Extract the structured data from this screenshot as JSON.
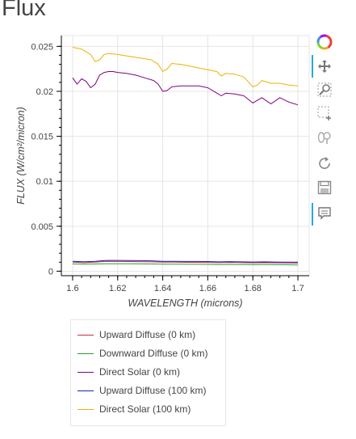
{
  "page": {
    "title": "Flux"
  },
  "toolbar": {
    "tools": [
      {
        "name": "logo-icon"
      },
      {
        "name": "pan-icon",
        "active": true
      },
      {
        "name": "box-zoom-icon"
      },
      {
        "name": "box-select-icon"
      },
      {
        "name": "wheel-zoom-icon"
      },
      {
        "name": "reset-icon"
      },
      {
        "name": "save-icon"
      },
      {
        "name": "hover-icon",
        "active": true
      }
    ]
  },
  "chart_data": {
    "type": "line",
    "title": "",
    "xlabel": "WAVELENGTH (microns)",
    "ylabel": "FLUX (W/cm²/micron)",
    "xlim": [
      1.595,
      1.705
    ],
    "ylim": [
      -0.0005,
      0.0262
    ],
    "xticks": [
      1.6,
      1.62,
      1.64,
      1.66,
      1.68,
      1.7
    ],
    "xtick_labels": [
      "1.6",
      "1.62",
      "1.64",
      "1.66",
      "1.68",
      "1.7"
    ],
    "yticks": [
      0,
      0.005,
      0.01,
      0.015,
      0.02,
      0.025
    ],
    "ytick_labels": [
      "0",
      "0.005",
      "0.01",
      "0.015",
      "0.02",
      "0.025"
    ],
    "grid": true,
    "legend_position": "below",
    "series": [
      {
        "name": "Upward Diffuse (0 km)",
        "color": "#c0304a",
        "x": [
          1.6,
          1.605,
          1.61,
          1.615,
          1.62,
          1.625,
          1.63,
          1.635,
          1.64,
          1.645,
          1.65,
          1.655,
          1.66,
          1.665,
          1.67,
          1.675,
          1.68,
          1.685,
          1.69,
          1.695,
          1.7
        ],
        "y": [
          0.001,
          0.00095,
          0.001,
          0.0011,
          0.00108,
          0.00107,
          0.00105,
          0.00104,
          0.001,
          0.001,
          0.00098,
          0.00098,
          0.00097,
          0.00095,
          0.00097,
          0.00095,
          0.00093,
          0.00095,
          0.00093,
          0.00092,
          0.0009
        ]
      },
      {
        "name": "Downward Diffuse (0 km)",
        "color": "#2ca02c",
        "x": [
          1.6,
          1.605,
          1.61,
          1.615,
          1.62,
          1.625,
          1.63,
          1.635,
          1.64,
          1.645,
          1.65,
          1.655,
          1.66,
          1.665,
          1.67,
          1.675,
          1.68,
          1.685,
          1.69,
          1.695,
          1.7
        ],
        "y": [
          0.0008,
          0.00078,
          0.0008,
          0.00082,
          0.00082,
          0.00082,
          0.00081,
          0.0008,
          0.00078,
          0.00078,
          0.00077,
          0.00077,
          0.00076,
          0.00074,
          0.00075,
          0.00074,
          0.00072,
          0.00073,
          0.00072,
          0.00071,
          0.0007
        ]
      },
      {
        "name": "Direct Solar (0 km)",
        "color": "#800080",
        "x": [
          1.6,
          1.602,
          1.604,
          1.606,
          1.608,
          1.61,
          1.612,
          1.614,
          1.616,
          1.618,
          1.62,
          1.624,
          1.628,
          1.632,
          1.636,
          1.638,
          1.64,
          1.642,
          1.644,
          1.648,
          1.652,
          1.656,
          1.66,
          1.664,
          1.666,
          1.668,
          1.672,
          1.676,
          1.68,
          1.682,
          1.684,
          1.688,
          1.692,
          1.696,
          1.7
        ],
        "y": [
          0.0215,
          0.0208,
          0.0214,
          0.0211,
          0.0204,
          0.0208,
          0.0218,
          0.0221,
          0.0222,
          0.0222,
          0.0221,
          0.022,
          0.0218,
          0.0215,
          0.0212,
          0.0208,
          0.02,
          0.0201,
          0.0205,
          0.0206,
          0.0206,
          0.0206,
          0.0204,
          0.0198,
          0.0195,
          0.0198,
          0.0197,
          0.0195,
          0.0187,
          0.019,
          0.0193,
          0.0186,
          0.0193,
          0.0188,
          0.0185
        ]
      },
      {
        "name": "Upward Diffuse (100 km)",
        "color": "#1f1fb4",
        "x": [
          1.6,
          1.605,
          1.61,
          1.615,
          1.62,
          1.625,
          1.63,
          1.635,
          1.64,
          1.645,
          1.65,
          1.655,
          1.66,
          1.665,
          1.67,
          1.675,
          1.68,
          1.685,
          1.69,
          1.695,
          1.7
        ],
        "y": [
          0.0011,
          0.00105,
          0.0011,
          0.0012,
          0.0012,
          0.00118,
          0.00117,
          0.00115,
          0.0011,
          0.0011,
          0.00108,
          0.00108,
          0.00107,
          0.00104,
          0.00106,
          0.00104,
          0.00102,
          0.00104,
          0.00102,
          0.00101,
          0.001
        ]
      },
      {
        "name": "Direct Solar (100 km)",
        "color": "#f0b000",
        "x": [
          1.6,
          1.604,
          1.608,
          1.61,
          1.612,
          1.614,
          1.616,
          1.62,
          1.625,
          1.63,
          1.635,
          1.638,
          1.64,
          1.642,
          1.644,
          1.648,
          1.652,
          1.656,
          1.66,
          1.664,
          1.666,
          1.668,
          1.672,
          1.676,
          1.68,
          1.682,
          1.684,
          1.688,
          1.692,
          1.696,
          1.7
        ],
        "y": [
          0.0249,
          0.0247,
          0.0241,
          0.0233,
          0.0235,
          0.0241,
          0.0242,
          0.0241,
          0.0239,
          0.0237,
          0.0235,
          0.023,
          0.0222,
          0.0225,
          0.0231,
          0.023,
          0.0228,
          0.0226,
          0.0224,
          0.0222,
          0.0217,
          0.022,
          0.0219,
          0.0216,
          0.0205,
          0.0207,
          0.0212,
          0.0209,
          0.0209,
          0.0207,
          0.0206
        ]
      }
    ]
  }
}
